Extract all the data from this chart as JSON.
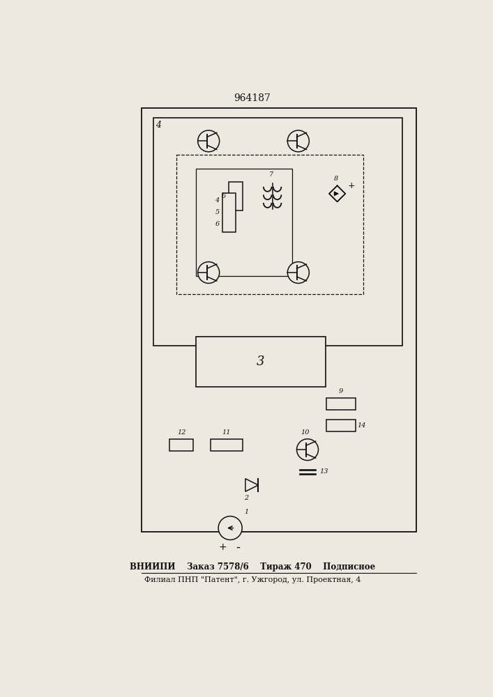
{
  "title": "964187",
  "footer_bold": "ВНИИПИ    Заказ 7578/6    Тираж 470    Подписное",
  "footer_normal": "Филиал ПНП \"Патент\", г. Ужгород, ул. Проектная, 4",
  "bg": "#ede8e0",
  "lc": "#111111",
  "lw": 1.1
}
